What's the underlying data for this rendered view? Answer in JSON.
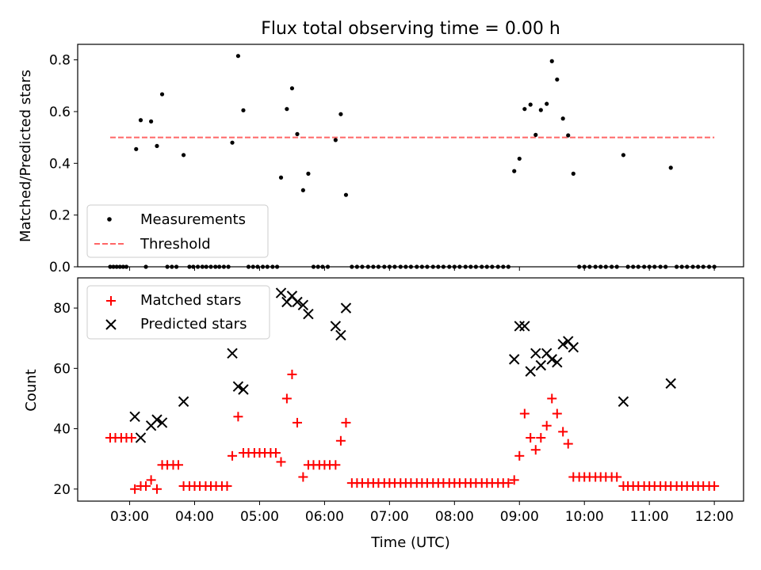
{
  "chart_data": [
    {
      "type": "scatter",
      "title": "Flux total observing time = 0.00 h",
      "xlabel": "",
      "ylabel": "Matched/Predicted stars",
      "ylim": [
        0,
        0.86
      ],
      "yticks": [
        0.0,
        0.2,
        0.4,
        0.6,
        0.8
      ],
      "ytick_labels": [
        "0.0",
        "0.2",
        "0.4",
        "0.6",
        "0.8"
      ],
      "legend_position": "lower-left",
      "series": [
        {
          "name": "Measurements",
          "marker": "dot",
          "color": "#000000",
          "points": [
            [
              2.7,
              0
            ],
            [
              2.75,
              0
            ],
            [
              2.8,
              0
            ],
            [
              2.85,
              0
            ],
            [
              2.9,
              0
            ],
            [
              2.95,
              0
            ],
            [
              3.1,
              0.455
            ],
            [
              3.17,
              0.567
            ],
            [
              3.25,
              0
            ],
            [
              3.33,
              0.562
            ],
            [
              3.42,
              0.467
            ],
            [
              3.5,
              0.667
            ],
            [
              3.58,
              0
            ],
            [
              3.65,
              0
            ],
            [
              3.72,
              0
            ],
            [
              3.83,
              0.432
            ],
            [
              3.92,
              0
            ],
            [
              3.98,
              0
            ],
            [
              4.05,
              0
            ],
            [
              4.12,
              0
            ],
            [
              4.18,
              0
            ],
            [
              4.25,
              0
            ],
            [
              4.32,
              0
            ],
            [
              4.38,
              0
            ],
            [
              4.45,
              0
            ],
            [
              4.52,
              0
            ],
            [
              4.58,
              0.48
            ],
            [
              4.67,
              0.815
            ],
            [
              4.75,
              0.605
            ],
            [
              4.83,
              0
            ],
            [
              4.9,
              0
            ],
            [
              4.97,
              0
            ],
            [
              5.05,
              0
            ],
            [
              5.12,
              0
            ],
            [
              5.2,
              0
            ],
            [
              5.27,
              0
            ],
            [
              5.33,
              0.345
            ],
            [
              5.42,
              0.61
            ],
            [
              5.5,
              0.69
            ],
            [
              5.58,
              0.513
            ],
            [
              5.67,
              0.296
            ],
            [
              5.75,
              0.36
            ],
            [
              5.83,
              0
            ],
            [
              5.9,
              0
            ],
            [
              5.97,
              0
            ],
            [
              6.05,
              0
            ],
            [
              6.17,
              0.49
            ],
            [
              6.25,
              0.59
            ],
            [
              6.33,
              0.278
            ],
            [
              6.42,
              0
            ],
            [
              6.5,
              0
            ],
            [
              6.58,
              0
            ],
            [
              6.67,
              0
            ],
            [
              6.75,
              0
            ],
            [
              6.83,
              0
            ],
            [
              6.92,
              0
            ],
            [
              7.0,
              0
            ],
            [
              7.08,
              0
            ],
            [
              7.17,
              0
            ],
            [
              7.25,
              0
            ],
            [
              7.33,
              0
            ],
            [
              7.42,
              0
            ],
            [
              7.5,
              0
            ],
            [
              7.58,
              0
            ],
            [
              7.67,
              0
            ],
            [
              7.75,
              0
            ],
            [
              7.83,
              0
            ],
            [
              7.92,
              0
            ],
            [
              8.0,
              0
            ],
            [
              8.08,
              0
            ],
            [
              8.17,
              0
            ],
            [
              8.25,
              0
            ],
            [
              8.33,
              0
            ],
            [
              8.42,
              0
            ],
            [
              8.5,
              0
            ],
            [
              8.58,
              0
            ],
            [
              8.67,
              0
            ],
            [
              8.75,
              0
            ],
            [
              8.83,
              0
            ],
            [
              8.92,
              0.37
            ],
            [
              9.0,
              0.418
            ],
            [
              9.08,
              0.61
            ],
            [
              9.17,
              0.627
            ],
            [
              9.25,
              0.51
            ],
            [
              9.33,
              0.606
            ],
            [
              9.42,
              0.63
            ],
            [
              9.5,
              0.795
            ],
            [
              9.58,
              0.724
            ],
            [
              9.67,
              0.573
            ],
            [
              9.75,
              0.508
            ],
            [
              9.83,
              0.36
            ],
            [
              9.92,
              0
            ],
            [
              10.0,
              0
            ],
            [
              10.08,
              0
            ],
            [
              10.17,
              0
            ],
            [
              10.25,
              0
            ],
            [
              10.33,
              0
            ],
            [
              10.42,
              0
            ],
            [
              10.5,
              0
            ],
            [
              10.6,
              0.432
            ],
            [
              10.67,
              0
            ],
            [
              10.75,
              0
            ],
            [
              10.83,
              0
            ],
            [
              10.92,
              0
            ],
            [
              11.0,
              0
            ],
            [
              11.08,
              0
            ],
            [
              11.17,
              0
            ],
            [
              11.25,
              0
            ],
            [
              11.33,
              0.383
            ],
            [
              11.42,
              0
            ],
            [
              11.5,
              0
            ],
            [
              11.58,
              0
            ],
            [
              11.67,
              0
            ],
            [
              11.75,
              0
            ],
            [
              11.83,
              0
            ],
            [
              11.92,
              0
            ],
            [
              12.0,
              0
            ]
          ]
        },
        {
          "name": "Threshold",
          "style": "dashed-line",
          "color": "#ff6666",
          "x": [
            2.7,
            12.0
          ],
          "y": [
            0.5,
            0.5
          ]
        }
      ]
    },
    {
      "type": "scatter",
      "title": "",
      "xlabel": "Time (UTC)",
      "ylabel": "Count",
      "xlim": [
        2.2,
        12.45
      ],
      "ylim": [
        16,
        90
      ],
      "xticks": [
        3,
        4,
        5,
        6,
        7,
        8,
        9,
        10,
        11,
        12
      ],
      "xtick_labels": [
        "03:00",
        "04:00",
        "05:00",
        "06:00",
        "07:00",
        "08:00",
        "09:00",
        "10:00",
        "11:00",
        "12:00"
      ],
      "yticks": [
        20,
        40,
        60,
        80
      ],
      "ytick_labels": [
        "20",
        "40",
        "60",
        "80"
      ],
      "legend_position": "upper-left",
      "series": [
        {
          "name": "Matched stars",
          "marker": "plus",
          "color": "#ff0000",
          "points": [
            [
              2.7,
              37
            ],
            [
              2.78,
              37
            ],
            [
              2.87,
              37
            ],
            [
              2.95,
              37
            ],
            [
              3.03,
              37
            ],
            [
              3.08,
              20
            ],
            [
              3.17,
              21
            ],
            [
              3.25,
              21
            ],
            [
              3.33,
              23
            ],
            [
              3.42,
              20
            ],
            [
              3.5,
              28
            ],
            [
              3.58,
              28
            ],
            [
              3.67,
              28
            ],
            [
              3.75,
              28
            ],
            [
              3.83,
              21
            ],
            [
              3.92,
              21
            ],
            [
              4.0,
              21
            ],
            [
              4.08,
              21
            ],
            [
              4.17,
              21
            ],
            [
              4.25,
              21
            ],
            [
              4.33,
              21
            ],
            [
              4.42,
              21
            ],
            [
              4.5,
              21
            ],
            [
              4.58,
              31
            ],
            [
              4.67,
              44
            ],
            [
              4.75,
              32
            ],
            [
              4.83,
              32
            ],
            [
              4.92,
              32
            ],
            [
              5.0,
              32
            ],
            [
              5.08,
              32
            ],
            [
              5.17,
              32
            ],
            [
              5.25,
              32
            ],
            [
              5.33,
              29
            ],
            [
              5.42,
              50
            ],
            [
              5.5,
              58
            ],
            [
              5.58,
              42
            ],
            [
              5.67,
              24
            ],
            [
              5.75,
              28
            ],
            [
              5.83,
              28
            ],
            [
              5.92,
              28
            ],
            [
              6.0,
              28
            ],
            [
              6.08,
              28
            ],
            [
              6.17,
              28
            ],
            [
              6.25,
              36
            ],
            [
              6.33,
              42
            ],
            [
              6.42,
              22
            ],
            [
              6.5,
              22
            ],
            [
              6.58,
              22
            ],
            [
              6.67,
              22
            ],
            [
              6.75,
              22
            ],
            [
              6.83,
              22
            ],
            [
              6.92,
              22
            ],
            [
              7.0,
              22
            ],
            [
              7.08,
              22
            ],
            [
              7.17,
              22
            ],
            [
              7.25,
              22
            ],
            [
              7.33,
              22
            ],
            [
              7.42,
              22
            ],
            [
              7.5,
              22
            ],
            [
              7.58,
              22
            ],
            [
              7.67,
              22
            ],
            [
              7.75,
              22
            ],
            [
              7.83,
              22
            ],
            [
              7.92,
              22
            ],
            [
              8.0,
              22
            ],
            [
              8.08,
              22
            ],
            [
              8.17,
              22
            ],
            [
              8.25,
              22
            ],
            [
              8.33,
              22
            ],
            [
              8.42,
              22
            ],
            [
              8.5,
              22
            ],
            [
              8.58,
              22
            ],
            [
              8.67,
              22
            ],
            [
              8.75,
              22
            ],
            [
              8.83,
              22
            ],
            [
              8.92,
              23
            ],
            [
              9.0,
              31
            ],
            [
              9.08,
              45
            ],
            [
              9.17,
              37
            ],
            [
              9.25,
              33
            ],
            [
              9.33,
              37
            ],
            [
              9.42,
              41
            ],
            [
              9.5,
              50
            ],
            [
              9.58,
              45
            ],
            [
              9.67,
              39
            ],
            [
              9.75,
              35
            ],
            [
              9.83,
              24
            ],
            [
              9.92,
              24
            ],
            [
              10.0,
              24
            ],
            [
              10.08,
              24
            ],
            [
              10.17,
              24
            ],
            [
              10.25,
              24
            ],
            [
              10.33,
              24
            ],
            [
              10.42,
              24
            ],
            [
              10.5,
              24
            ],
            [
              10.6,
              21
            ],
            [
              10.67,
              21
            ],
            [
              10.75,
              21
            ],
            [
              10.83,
              21
            ],
            [
              10.92,
              21
            ],
            [
              11.0,
              21
            ],
            [
              11.08,
              21
            ],
            [
              11.17,
              21
            ],
            [
              11.25,
              21
            ],
            [
              11.33,
              21
            ],
            [
              11.42,
              21
            ],
            [
              11.5,
              21
            ],
            [
              11.58,
              21
            ],
            [
              11.67,
              21
            ],
            [
              11.75,
              21
            ],
            [
              11.83,
              21
            ],
            [
              11.92,
              21
            ],
            [
              12.0,
              21
            ]
          ]
        },
        {
          "name": "Predicted stars",
          "marker": "x",
          "color": "#000000",
          "points": [
            [
              3.08,
              44
            ],
            [
              3.17,
              37
            ],
            [
              3.33,
              41
            ],
            [
              3.42,
              43
            ],
            [
              3.5,
              42
            ],
            [
              3.83,
              49
            ],
            [
              4.58,
              65
            ],
            [
              4.67,
              54
            ],
            [
              4.75,
              53
            ],
            [
              5.33,
              85
            ],
            [
              5.42,
              82
            ],
            [
              5.5,
              84
            ],
            [
              5.58,
              82
            ],
            [
              5.67,
              81
            ],
            [
              5.75,
              78
            ],
            [
              6.17,
              74
            ],
            [
              6.25,
              71
            ],
            [
              6.33,
              80
            ],
            [
              8.92,
              63
            ],
            [
              9.0,
              74
            ],
            [
              9.08,
              74
            ],
            [
              9.17,
              59
            ],
            [
              9.25,
              65
            ],
            [
              9.33,
              61
            ],
            [
              9.42,
              65
            ],
            [
              9.5,
              63
            ],
            [
              9.58,
              62
            ],
            [
              9.67,
              68
            ],
            [
              9.75,
              69
            ],
            [
              9.83,
              67
            ],
            [
              10.6,
              49
            ],
            [
              11.33,
              55
            ]
          ]
        }
      ]
    }
  ]
}
